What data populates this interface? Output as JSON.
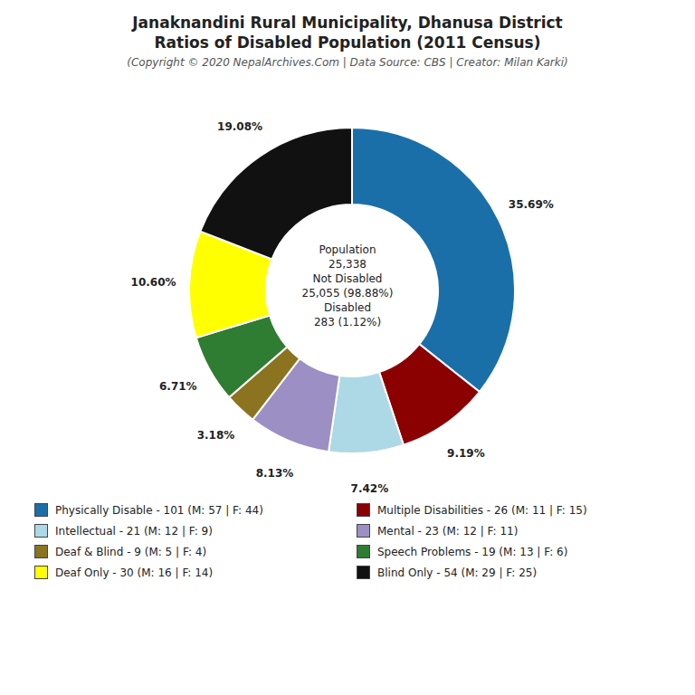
{
  "chart_data": {
    "type": "pie",
    "title": [
      "Janaknandini Rural Municipality, Dhanusa District",
      "Ratios of Disabled Population (2011 Census)"
    ],
    "subtitle": "(Copyright © 2020 NepalArchives.Com | Data Source: CBS | Creator: Milan Karki)",
    "categories": [
      "Physically Disable - 101 (M: 57 | F: 44)",
      "Multiple Disabilities - 26 (M: 11 | F: 15)",
      "Intellectual - 21 (M: 12 | F: 9)",
      "Mental - 23 (M: 12 | F: 11)",
      "Deaf & Blind - 9 (M: 5 | F: 4)",
      "Speech Problems - 19 (M: 13 | F: 6)",
      "Deaf Only - 30 (M: 16 | F: 14)",
      "Blind Only - 54 (M: 29 | F: 25)"
    ],
    "values": [
      35.69,
      9.19,
      7.42,
      8.13,
      3.18,
      6.71,
      10.6,
      19.08
    ],
    "value_labels": [
      "35.69%",
      "9.19%",
      "7.42%",
      "8.13%",
      "3.18%",
      "6.71%",
      "10.60%",
      "19.08%"
    ],
    "colors": [
      "#1a6fa8",
      "#8b0000",
      "#add8e6",
      "#9b8fc4",
      "#8b7320",
      "#2e7d32",
      "#ffff00",
      "#111111"
    ],
    "data_labels": true,
    "legend": "bottom",
    "annotations": [
      "Population",
      "25,338",
      "Not Disabled",
      "25,055 (98.88%)",
      "Disabled",
      "283 (1.12%)"
    ]
  }
}
